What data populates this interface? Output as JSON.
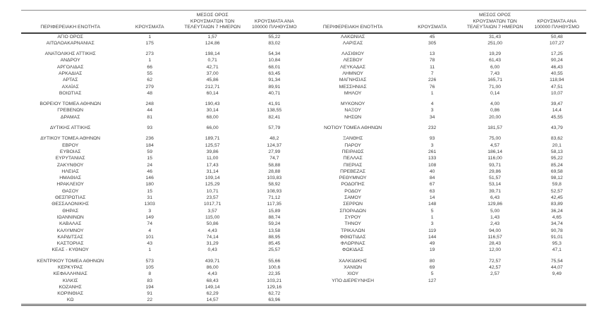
{
  "table": {
    "headers": [
      "ΠΕΡΙΦΕΡΕΙΑΚΗ ΕΝΟΤΗΤΑ",
      "ΚΡΟΥΣΜΑΤΑ",
      "ΜΕΣΟΣ ΟΡΟΣ ΚΡΟΥΣΜΑΤΩΝ ΤΩΝ ΤΕΛΕΥΤΑΙΩΝ 7 ΗΜΕΡΩΝ",
      "ΚΡΟΥΣΜΑΤΑ ΑΝΑ 100000 ΠΛΗΘΥΣΜΟ"
    ],
    "rows": [
      [
        "ΑΓΙΟ ΟΡΟΣ",
        "1",
        "1,57",
        "55,22",
        "ΛΑΚΩΝΙΑΣ",
        "45",
        "31,43",
        "50,48"
      ],
      [
        "ΑΙΤΩΛΟΑΚΑΡΝΑΝΙΑΣ",
        "175",
        "124,86",
        "83,02",
        "ΛΑΡΙΣΑΣ",
        "305",
        "251,00",
        "107,27"
      ],
      "sep",
      [
        "ΑΝΑΤΟΛΙΚΗΣ ΑΤΤΙΚΗΣ",
        "273",
        "198,14",
        "54,34",
        "ΛΑΣΙΘΙΟΥ",
        "13",
        "19,29",
        "17,25"
      ],
      [
        "ΑΝΔΡΟΥ",
        "1",
        "0,71",
        "10,84",
        "ΛΕΣΒΟΥ",
        "78",
        "61,43",
        "90,24"
      ],
      [
        "ΑΡΓΟΛΙΔΑΣ",
        "66",
        "42,71",
        "68,01",
        "ΛΕΥΚΑΔΑΣ",
        "11",
        "6,00",
        "46,43"
      ],
      [
        "ΑΡΚΑΔΙΑΣ",
        "55",
        "37,00",
        "63,45",
        "ΛΗΜΝΟΥ",
        "7",
        "7,43",
        "40,55"
      ],
      [
        "ΑΡΤΑΣ",
        "62",
        "45,86",
        "91,34",
        "ΜΑΓΝΗΣΙΑΣ",
        "226",
        "165,71",
        "118,94"
      ],
      [
        "ΑΧΑΪΑΣ",
        "279",
        "212,71",
        "89,91",
        "ΜΕΣΣΗΝΙΑΣ",
        "76",
        "71,00",
        "47,51"
      ],
      [
        "ΒΟΙΩΤΙΑΣ",
        "48",
        "60,14",
        "40,71",
        "ΜΗΛΟΥ",
        "1",
        "0,14",
        "10,07"
      ],
      "sep",
      [
        "ΒΟΡΕΙΟΥ ΤΟΜΕΑ ΑΘΗΝΩΝ",
        "248",
        "190,43",
        "41,91",
        "ΜΥΚΟΝΟΥ",
        "4",
        "4,00",
        "39,47"
      ],
      [
        "ΓΡΕΒΕΝΩΝ",
        "44",
        "30,14",
        "138,55",
        "ΝΑΞΟΥ",
        "3",
        "0,86",
        "14,4"
      ],
      [
        "ΔΡΑΜΑΣ",
        "81",
        "68,00",
        "82,41",
        "ΝΗΣΩΝ",
        "34",
        "20,00",
        "45,55"
      ],
      "sep",
      [
        "ΔΥΤΙΚΗΣ ΑΤΤΙΚΗΣ",
        "93",
        "66,00",
        "57,79",
        "ΝΟΤΙΟΥ ΤΟΜΕΑ ΑΘΗΝΩΝ",
        "232",
        "181,57",
        "43,79"
      ],
      "sep",
      [
        "ΔΥΤΙΚΟΥ ΤΟΜΕΑ ΑΘΗΝΩΝ",
        "236",
        "189,71",
        "48,2",
        "ΞΑΝΘΗΣ",
        "93",
        "75,00",
        "83,62"
      ],
      [
        "ΕΒΡΟΥ",
        "184",
        "125,57",
        "124,37",
        "ΠΑΡΟΥ",
        "3",
        "4,57",
        "20,1"
      ],
      [
        "ΕΥΒΟΙΑΣ",
        "59",
        "39,86",
        "27,99",
        "ΠΕΙΡΑΙΩΣ",
        "261",
        "186,14",
        "58,13"
      ],
      [
        "ΕΥΡΥΤΑΝΙΑΣ",
        "15",
        "11,00",
        "74,7",
        "ΠΕΛΛΑΣ",
        "133",
        "116,00",
        "95,22"
      ],
      [
        "ΖΑΚΥΝΘΟΥ",
        "24",
        "17,43",
        "58,88",
        "ΠΙΕΡΙΑΣ",
        "108",
        "93,71",
        "85,24"
      ],
      [
        "ΗΛΕΙΑΣ",
        "46",
        "31,14",
        "28,88",
        "ΠΡΕΒΕΖΑΣ",
        "40",
        "29,86",
        "69,58"
      ],
      [
        "ΗΜΑΘΙΑΣ",
        "146",
        "109,14",
        "103,83",
        "ΡΕΘΥΜΝΟΥ",
        "84",
        "51,57",
        "98,12"
      ],
      [
        "ΗΡΑΚΛΕΙΟΥ",
        "180",
        "125,29",
        "58,92",
        "ΡΟΔΟΠΗΣ",
        "67",
        "53,14",
        "59,8"
      ],
      [
        "ΘΑΣΟΥ",
        "15",
        "10,71",
        "108,93",
        "ΡΟΔΟΥ",
        "63",
        "39,71",
        "52,57"
      ],
      [
        "ΘΕΣΠΡΩΤΙΑΣ",
        "31",
        "23,57",
        "71,12",
        "ΣΑΜΟΥ",
        "14",
        "6,43",
        "42,45"
      ],
      [
        "ΘΕΣΣΑΛΟΝΙΚΗΣ",
        "1303",
        "1017,71",
        "117,35",
        "ΣΕΡΡΩΝ",
        "148",
        "129,86",
        "83,89"
      ],
      [
        "ΘΗΡΑΣ",
        "3",
        "3,57",
        "15,89",
        "ΣΠΟΡΑΔΩΝ",
        "5",
        "5,00",
        "36,24"
      ],
      [
        "ΙΩΑΝΝΙΝΩΝ",
        "149",
        "115,00",
        "88,74",
        "ΣΥΡΟΥ",
        "1",
        "1,43",
        "4,65"
      ],
      [
        "ΚΑΒΑΛΑΣ",
        "74",
        "50,86",
        "59,24",
        "ΤΗΝΟΥ",
        "3",
        "2,43",
        "34,74"
      ],
      [
        "ΚΑΛΥΜΝΟΥ",
        "4",
        "4,43",
        "13,58",
        "ΤΡΙΚΑΛΩΝ",
        "119",
        "94,00",
        "90,78"
      ],
      [
        "ΚΑΡΔΙΤΣΑΣ",
        "101",
        "74,14",
        "88,95",
        "ΦΘΙΩΤΙΔΑΣ",
        "144",
        "116,57",
        "91,01"
      ],
      [
        "ΚΑΣΤΟΡΙΑΣ",
        "43",
        "31,29",
        "85,45",
        "ΦΛΩΡΙΝΑΣ",
        "49",
        "28,43",
        "95,3"
      ],
      [
        "ΚΕΑΣ - ΚΥΘΝΟΥ",
        "1",
        "0,43",
        "25,57",
        "ΦΩΚΙΔΑΣ",
        "19",
        "12,00",
        "47,1"
      ],
      "sep",
      [
        "ΚΕΝΤΡΙΚΟΥ ΤΟΜΕΑ ΑΘΗΝΩΝ",
        "573",
        "439,71",
        "55,66",
        "ΧΑΛΚΙΔΙΚΗΣ",
        "80",
        "72,57",
        "75,54"
      ],
      [
        "ΚΕΡΚΥΡΑΣ",
        "105",
        "86,00",
        "100,6",
        "ΧΑΝΙΩΝ",
        "69",
        "42,57",
        "44,07"
      ],
      [
        "ΚΕΦΑΛΛΗΝΙΑΣ",
        "8",
        "4,43",
        "22,35",
        "ΧΙΟΥ",
        "5",
        "2,57",
        "9,49"
      ],
      [
        "ΚΙΛΚΙΣ",
        "83",
        "68,43",
        "103,21",
        "ΥΠΟ ΔΙΕΡΕΥΝΗΣΗ",
        "127",
        "",
        ""
      ],
      [
        "ΚΟΖΑΝΗΣ",
        "194",
        "149,14",
        "129,16",
        "",
        "",
        "",
        ""
      ],
      [
        "ΚΟΡΙΝΘΙΑΣ",
        "91",
        "62,29",
        "62,72",
        "",
        "",
        "",
        ""
      ],
      [
        "ΚΩ",
        "22",
        "14,57",
        "63,96",
        "",
        "",
        "",
        ""
      ]
    ]
  },
  "colors": {
    "text": "#3c3c3c",
    "rule_thin": "#8a8a8a",
    "rule_thick": "#3f3f3f",
    "background": "#ffffff"
  }
}
